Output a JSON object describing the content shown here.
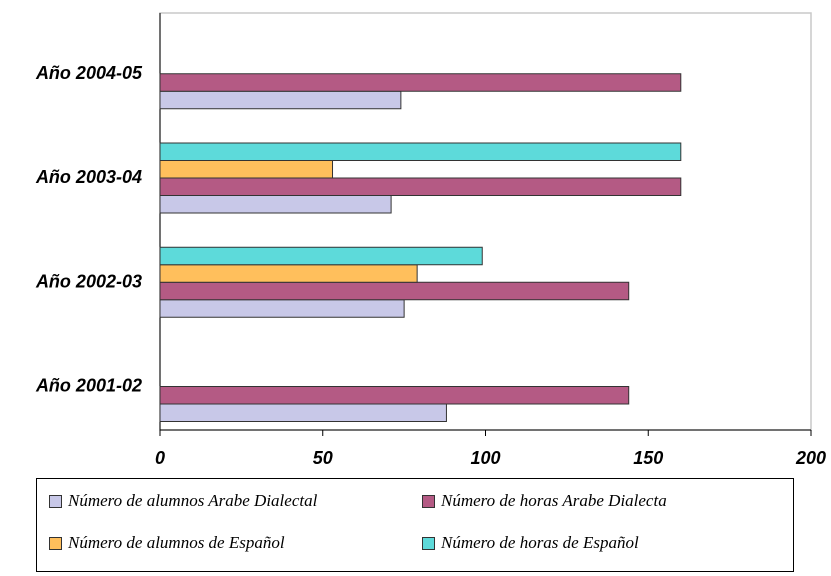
{
  "chart_data": {
    "type": "bar",
    "orientation": "horizontal",
    "categories": [
      "Año 2001-02",
      "Año 2002-03",
      "Año 2003-04",
      "Año 2004-05"
    ],
    "series": [
      {
        "name": "Número de alumnos Arabe Dialectal",
        "color": "#c8c8e8",
        "values": [
          88,
          75,
          71,
          74
        ]
      },
      {
        "name": "Número de horas Arabe Dialecta",
        "color": "#b45a84",
        "values": [
          144,
          144,
          160,
          160
        ]
      },
      {
        "name": "Número de alumnos de Español",
        "color": "#ffbf5c",
        "values": [
          null,
          79,
          53,
          null
        ]
      },
      {
        "name": "Número de horas de Español",
        "color": "#5ddada",
        "values": [
          null,
          99,
          160,
          null
        ]
      }
    ],
    "xlim": [
      0,
      200
    ],
    "xticks": [
      0,
      50,
      100,
      150,
      200
    ],
    "grid": false,
    "legend_position": "bottom"
  }
}
